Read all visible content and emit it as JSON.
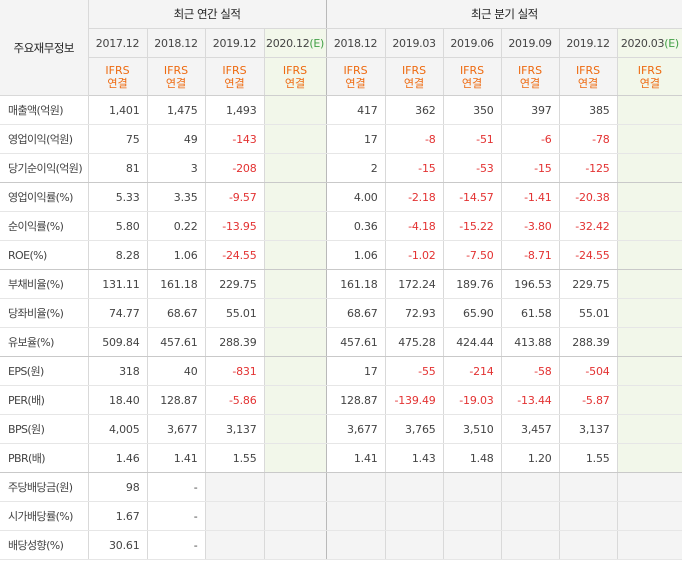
{
  "header": {
    "label_column": "주요재무정보",
    "annual_group": "최근 연간 실적",
    "quarter_group": "최근 분기 실적",
    "ifrs_top": "IFRS",
    "ifrs_bottom": "연결",
    "estimate_mark": "(E)"
  },
  "annual_periods": [
    "2017.12",
    "2018.12",
    "2019.12",
    "2020.12"
  ],
  "quarter_periods": [
    "2018.12",
    "2019.03",
    "2019.06",
    "2019.09",
    "2019.12",
    "2020.03"
  ],
  "rows": [
    {
      "label": "매출액(억원)",
      "annual": [
        "1,401",
        "1,475",
        "1,493",
        ""
      ],
      "quarter": [
        "417",
        "362",
        "350",
        "397",
        "385",
        ""
      ]
    },
    {
      "label": "영업이익(억원)",
      "annual": [
        "75",
        "49",
        "-143",
        ""
      ],
      "quarter": [
        "17",
        "-8",
        "-51",
        "-6",
        "-78",
        ""
      ]
    },
    {
      "label": "당기순이익(억원)",
      "annual": [
        "81",
        "3",
        "-208",
        ""
      ],
      "quarter": [
        "2",
        "-15",
        "-53",
        "-15",
        "-125",
        ""
      ]
    },
    {
      "label": "영업이익률(%)",
      "annual": [
        "5.33",
        "3.35",
        "-9.57",
        ""
      ],
      "quarter": [
        "4.00",
        "-2.18",
        "-14.57",
        "-1.41",
        "-20.38",
        ""
      ]
    },
    {
      "label": "순이익률(%)",
      "annual": [
        "5.80",
        "0.22",
        "-13.95",
        ""
      ],
      "quarter": [
        "0.36",
        "-4.18",
        "-15.22",
        "-3.80",
        "-32.42",
        ""
      ]
    },
    {
      "label": "ROE(%)",
      "annual": [
        "8.28",
        "1.06",
        "-24.55",
        ""
      ],
      "quarter": [
        "1.06",
        "-1.02",
        "-7.50",
        "-8.71",
        "-24.55",
        ""
      ]
    },
    {
      "label": "부채비율(%)",
      "annual": [
        "131.11",
        "161.18",
        "229.75",
        ""
      ],
      "quarter": [
        "161.18",
        "172.24",
        "189.76",
        "196.53",
        "229.75",
        ""
      ]
    },
    {
      "label": "당좌비율(%)",
      "annual": [
        "74.77",
        "68.67",
        "55.01",
        ""
      ],
      "quarter": [
        "68.67",
        "72.93",
        "65.90",
        "61.58",
        "55.01",
        ""
      ]
    },
    {
      "label": "유보율(%)",
      "annual": [
        "509.84",
        "457.61",
        "288.39",
        ""
      ],
      "quarter": [
        "457.61",
        "475.28",
        "424.44",
        "413.88",
        "288.39",
        ""
      ]
    },
    {
      "label": "EPS(원)",
      "annual": [
        "318",
        "40",
        "-831",
        ""
      ],
      "quarter": [
        "17",
        "-55",
        "-214",
        "-58",
        "-504",
        ""
      ]
    },
    {
      "label": "PER(배)",
      "annual": [
        "18.40",
        "128.87",
        "-5.86",
        ""
      ],
      "quarter": [
        "128.87",
        "-139.49",
        "-19.03",
        "-13.44",
        "-5.87",
        ""
      ]
    },
    {
      "label": "BPS(원)",
      "annual": [
        "4,005",
        "3,677",
        "3,137",
        ""
      ],
      "quarter": [
        "3,677",
        "3,765",
        "3,510",
        "3,457",
        "3,137",
        ""
      ]
    },
    {
      "label": "PBR(배)",
      "annual": [
        "1.46",
        "1.41",
        "1.55",
        ""
      ],
      "quarter": [
        "1.41",
        "1.43",
        "1.48",
        "1.20",
        "1.55",
        ""
      ]
    },
    {
      "label": "주당배당금(원)",
      "annual": [
        "98",
        "-",
        null,
        null
      ],
      "quarter": [
        null,
        null,
        null,
        null,
        null,
        null
      ]
    },
    {
      "label": "시가배당률(%)",
      "annual": [
        "1.67",
        "-",
        null,
        null
      ],
      "quarter": [
        null,
        null,
        null,
        null,
        null,
        null
      ]
    },
    {
      "label": "배당성향(%)",
      "annual": [
        "30.61",
        "-",
        null,
        null
      ],
      "quarter": [
        null,
        null,
        null,
        null,
        null,
        null
      ]
    }
  ],
  "colors": {
    "negative": "#e33232",
    "ifrs": "#ee6a10",
    "estimate_bg": "#f2f7ea",
    "estimate_mark": "#43a047"
  }
}
